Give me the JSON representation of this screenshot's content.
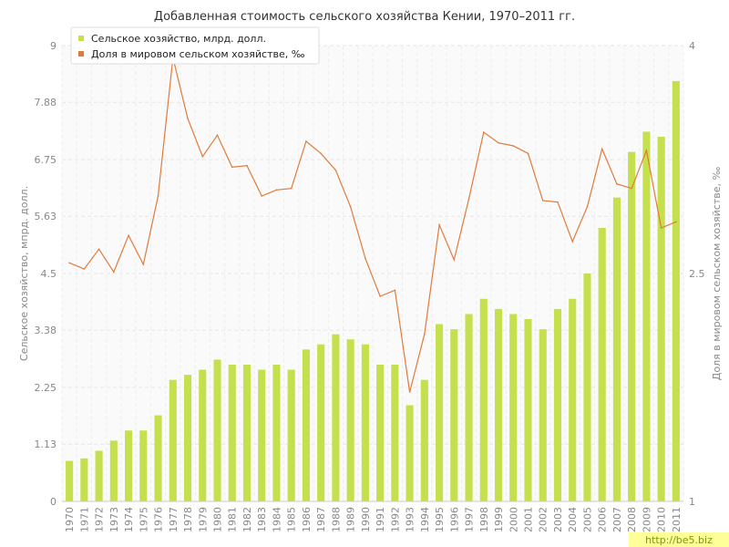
{
  "chart_data": {
    "type": "bar+line",
    "title": "Добавленная стоимость сельского хозяйства Кении, 1970–2011 гг.",
    "ylabel_left": "Сельское хозяйство, мпрд. долл.",
    "ylabel_right": "Доля в мировом сельском хозяйстве, ‰",
    "left_ticks": [
      "0",
      "1.13",
      "2.25",
      "3.38",
      "4.5",
      "5.63",
      "6.75",
      "7.88",
      "9"
    ],
    "right_ticks": [
      "1",
      "2.5",
      "4"
    ],
    "ylim_left": [
      0,
      9
    ],
    "ylim_right": [
      1,
      4
    ],
    "grid": true,
    "legend_position": "top-left",
    "categories": [
      "1970",
      "1971",
      "1972",
      "1973",
      "1974",
      "1975",
      "1976",
      "1977",
      "1978",
      "1979",
      "1980",
      "1981",
      "1982",
      "1983",
      "1984",
      "1985",
      "1986",
      "1987",
      "1988",
      "1989",
      "1990",
      "1991",
      "1992",
      "1993",
      "1994",
      "1995",
      "1996",
      "1997",
      "1998",
      "1999",
      "2000",
      "2001",
      "2002",
      "2003",
      "2004",
      "2005",
      "2006",
      "2007",
      "2008",
      "2009",
      "2010",
      "2011"
    ],
    "series": [
      {
        "name": "Сельское хозяйство, млрд. долл.",
        "type": "bar",
        "axis": "left",
        "color": "#c5e04d",
        "values": [
          0.8,
          0.85,
          1.0,
          1.2,
          1.4,
          1.4,
          1.7,
          2.4,
          2.5,
          2.6,
          2.8,
          2.7,
          2.7,
          2.6,
          2.7,
          2.6,
          3.0,
          3.1,
          3.3,
          3.2,
          3.1,
          2.7,
          2.7,
          1.9,
          2.4,
          3.5,
          3.4,
          3.7,
          4.0,
          3.8,
          3.7,
          3.6,
          3.4,
          3.8,
          4.0,
          4.5,
          5.4,
          6.0,
          6.9,
          7.3,
          7.2,
          8.3
        ]
      },
      {
        "name": "Доля в мировом сельском хозяйстве, ‰",
        "type": "line",
        "axis": "right",
        "color": "#e07b3c",
        "values": [
          2.57,
          2.53,
          2.66,
          2.51,
          2.75,
          2.56,
          3.01,
          3.92,
          3.52,
          3.27,
          3.41,
          3.2,
          3.21,
          3.01,
          3.05,
          3.06,
          3.37,
          3.29,
          3.18,
          2.94,
          2.6,
          2.35,
          2.39,
          1.72,
          2.1,
          2.82,
          2.59,
          2.99,
          3.43,
          3.36,
          3.34,
          3.29,
          2.98,
          2.97,
          2.71,
          2.94,
          3.32,
          3.09,
          3.06,
          3.31,
          2.8,
          2.84
        ]
      }
    ]
  },
  "watermark": "http://be5.biz"
}
